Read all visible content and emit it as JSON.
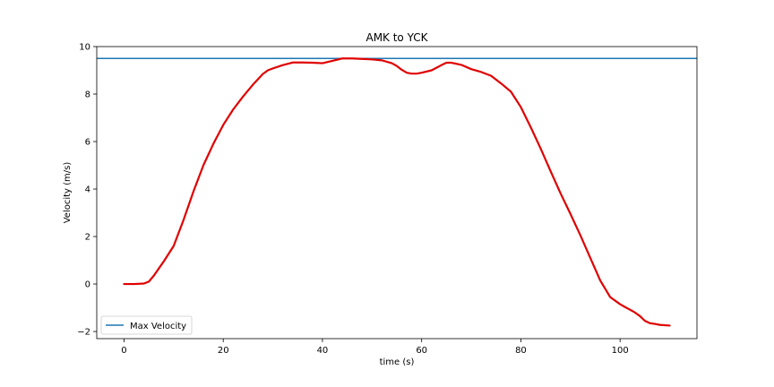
{
  "chart_data": {
    "type": "line",
    "title": "AMK to YCK",
    "xlabel": "time (s)",
    "ylabel": "Velocity (m/s)",
    "xlim": [
      -5.5,
      115.5
    ],
    "ylim": [
      -2.3,
      10
    ],
    "xticks": [
      0,
      20,
      40,
      60,
      80,
      100
    ],
    "yticks": [
      -2,
      0,
      2,
      4,
      6,
      8,
      10
    ],
    "grid": false,
    "legend_position": "lower-left",
    "colors": {
      "velocity_line": "#e00000",
      "max_velocity_line": "#1f77b4",
      "ylabel": "#1f77b4"
    },
    "series": [
      {
        "name": "Max Velocity",
        "x": [
          -5.5,
          115.5
        ],
        "y": [
          9.5,
          9.5
        ]
      },
      {
        "x": [
          0,
          2,
          4,
          5,
          6,
          7,
          8,
          10,
          12,
          14,
          16,
          18,
          20,
          22,
          24,
          26,
          28,
          29,
          30,
          32,
          34,
          36,
          38,
          40,
          42,
          44,
          46,
          48,
          50,
          52,
          54,
          55,
          56,
          57,
          58,
          59,
          60,
          62,
          64,
          65,
          66,
          68,
          70,
          72,
          74,
          76,
          78,
          80,
          82,
          84,
          86,
          88,
          90,
          92,
          94,
          96,
          98,
          100,
          101,
          102,
          103,
          104,
          105,
          106,
          107,
          108,
          110
        ],
        "y": [
          0,
          0,
          0.02,
          0.1,
          0.35,
          0.65,
          0.95,
          1.6,
          2.7,
          3.9,
          5.0,
          5.9,
          6.7,
          7.35,
          7.9,
          8.4,
          8.85,
          9.0,
          9.08,
          9.22,
          9.33,
          9.33,
          9.32,
          9.3,
          9.4,
          9.5,
          9.5,
          9.48,
          9.46,
          9.42,
          9.3,
          9.18,
          9.02,
          8.9,
          8.86,
          8.86,
          8.9,
          9.0,
          9.22,
          9.32,
          9.32,
          9.23,
          9.05,
          8.93,
          8.77,
          8.45,
          8.1,
          7.45,
          6.6,
          5.7,
          4.75,
          3.82,
          2.95,
          2.05,
          1.1,
          0.15,
          -0.55,
          -0.85,
          -0.97,
          -1.08,
          -1.2,
          -1.35,
          -1.55,
          -1.65,
          -1.68,
          -1.72,
          -1.75
        ]
      }
    ]
  }
}
